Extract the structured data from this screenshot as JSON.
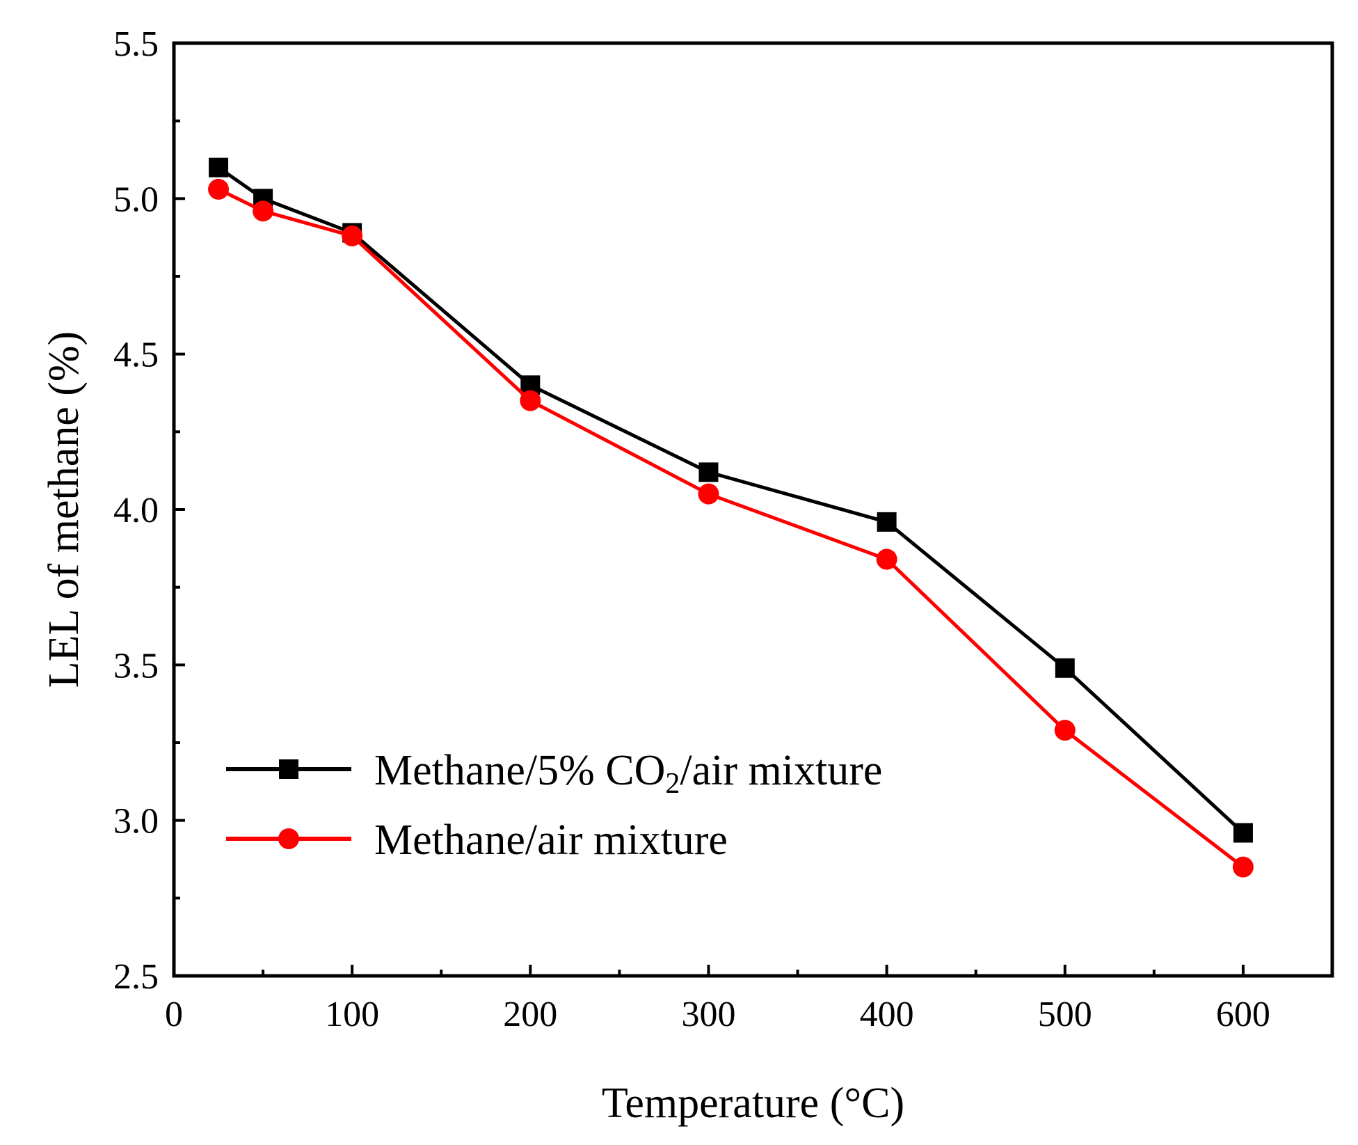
{
  "chart_data": {
    "type": "line",
    "title": "",
    "xlabel": "Temperature (°C)",
    "ylabel": "LEL of methane (%)",
    "xlim": [
      0,
      650
    ],
    "ylim": [
      2.5,
      5.5
    ],
    "x_ticks": [
      0,
      100,
      200,
      300,
      400,
      500,
      600
    ],
    "x_tick_labels": [
      "0",
      "100",
      "200",
      "300",
      "400",
      "500",
      "600"
    ],
    "y_ticks": [
      2.5,
      3.0,
      3.5,
      4.0,
      4.5,
      5.0,
      5.5
    ],
    "y_tick_labels": [
      "2.5",
      "3.0",
      "3.5",
      "4.0",
      "4.5",
      "5.0",
      "5.5"
    ],
    "grid": false,
    "legend_position": "bottom-left",
    "series": [
      {
        "name_main": "Methane/5% CO",
        "name_sub": "2",
        "name_tail": "/air mixture",
        "color": "#000000",
        "marker": "square",
        "x": [
          25,
          50,
          100,
          200,
          300,
          400,
          500,
          600
        ],
        "values": [
          5.1,
          5.0,
          4.89,
          4.4,
          4.12,
          3.96,
          3.49,
          2.96
        ]
      },
      {
        "name_main": "Methane/air mixture",
        "color": "#ff0000",
        "marker": "circle",
        "x": [
          25,
          50,
          100,
          200,
          300,
          400,
          500,
          600
        ],
        "values": [
          5.03,
          4.96,
          4.88,
          4.35,
          4.05,
          3.84,
          3.29,
          2.85
        ]
      }
    ]
  }
}
